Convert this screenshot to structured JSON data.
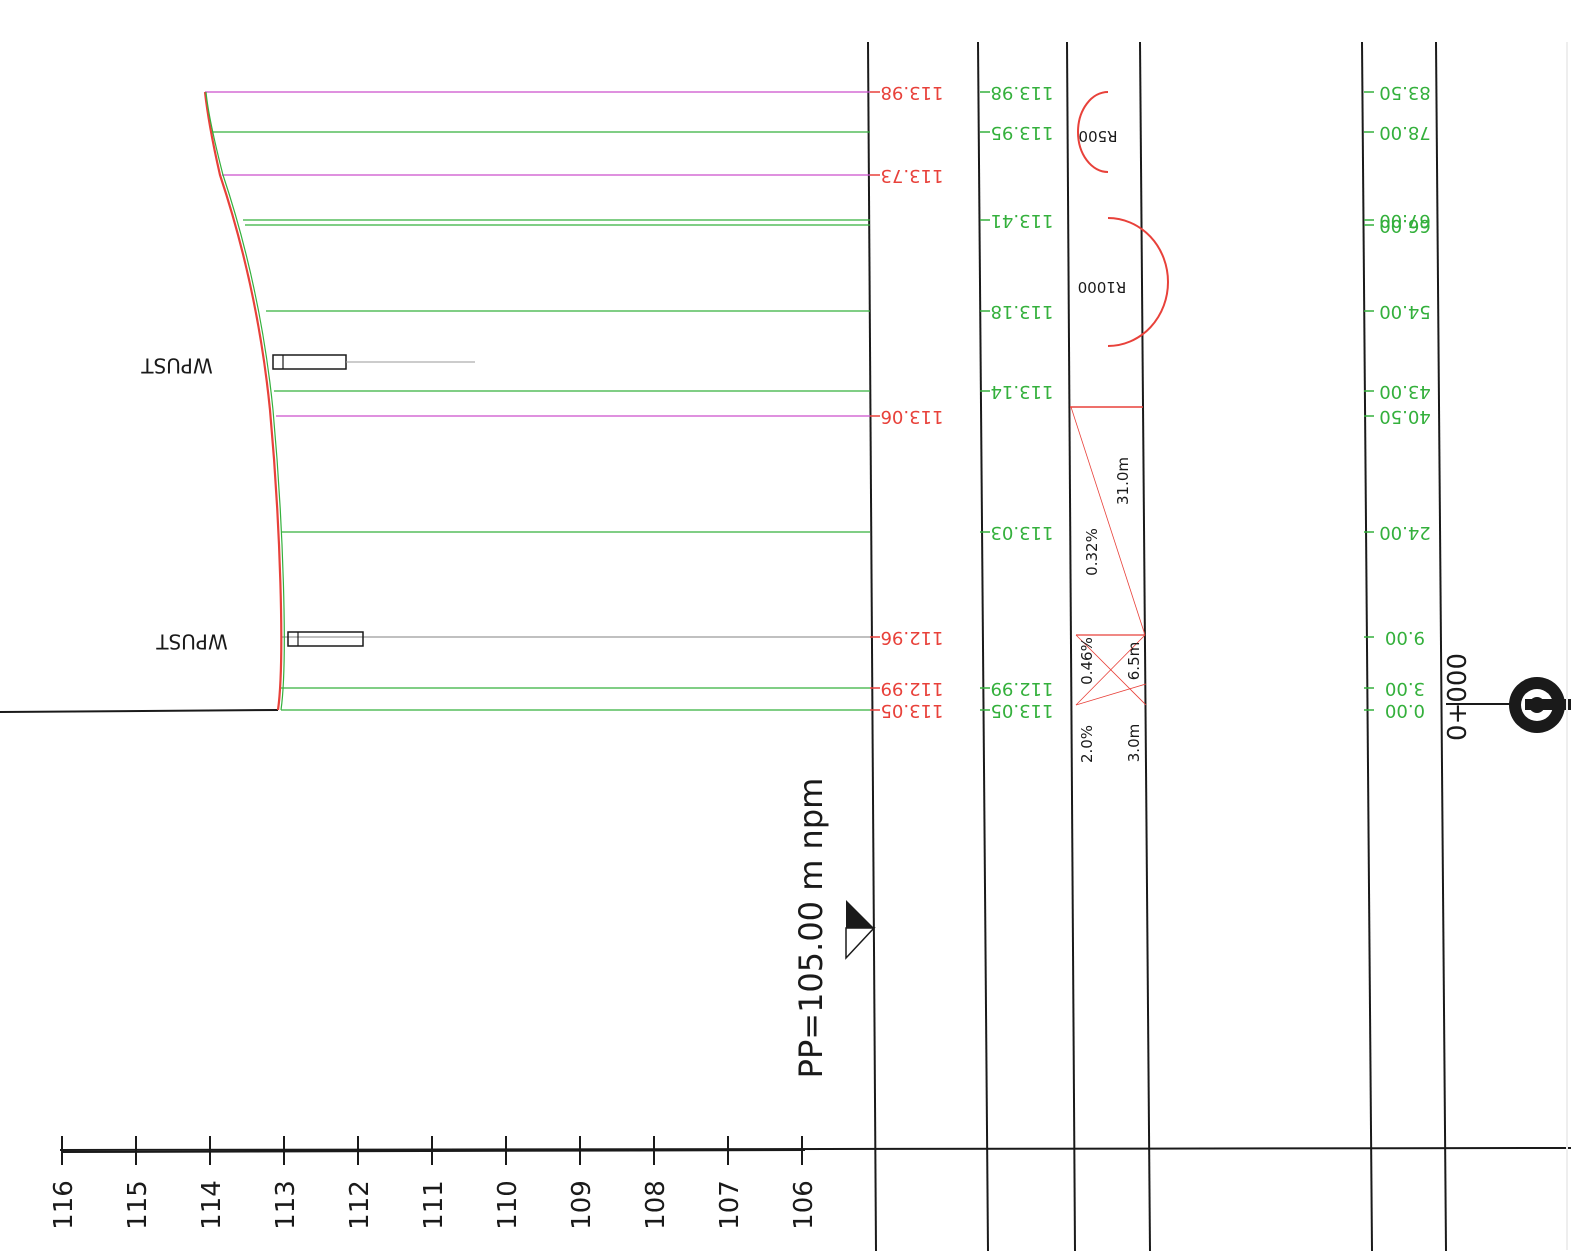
{
  "colors": {
    "ink": "#1a1a1a",
    "design": "#e8413a",
    "green": "#34b03c",
    "magenta": "#cc4fcc",
    "grey": "#9a9a9a"
  },
  "scale": {
    "ticks": [
      "116",
      "115",
      "114",
      "113",
      "112",
      "111",
      "110",
      "109",
      "108",
      "107",
      "106"
    ]
  },
  "datum": {
    "label": "PP=105.00 m npm"
  },
  "profile_rows": [
    {
      "station": "83.50",
      "design": "113.98",
      "terrain": "113.98",
      "line_color": "magenta"
    },
    {
      "station": "78.00",
      "design": "",
      "terrain": "113.95",
      "line_color": "green"
    },
    {
      "station": "",
      "design": "113.73",
      "terrain": "",
      "line_color": "magenta"
    },
    {
      "station": "67.00",
      "design": "",
      "terrain": "113.41",
      "line_color": "green"
    },
    {
      "station": "66.00",
      "design": "",
      "terrain": "",
      "line_color": "green"
    },
    {
      "station": "54.00",
      "design": "",
      "terrain": "113.18",
      "line_color": "green"
    },
    {
      "station": "43.00",
      "design": "",
      "terrain": "113.14",
      "line_color": "green"
    },
    {
      "station": "40.50",
      "design": "113.06",
      "terrain": "",
      "line_color": "magenta"
    },
    {
      "station": "24.00",
      "design": "",
      "terrain": "113.03",
      "line_color": "green"
    },
    {
      "station": "9.00",
      "design": "112.96",
      "terrain": "",
      "line_color": "grey"
    },
    {
      "station": "3.00",
      "design": "112.99",
      "terrain": "112.99",
      "line_color": "green"
    },
    {
      "station": "0.00",
      "design": "113.05",
      "terrain": "113.05",
      "line_color": "green"
    }
  ],
  "geometry_band": {
    "curves": [
      "R500",
      "R1000"
    ],
    "grades": [
      {
        "grade": "0.32%",
        "length": "31.0m"
      },
      {
        "grade": "0.46%",
        "length": "6.5m"
      },
      {
        "grade": "2.0%",
        "length": "3.0m"
      }
    ]
  },
  "chainage": {
    "label": "0+000"
  },
  "structures": [
    {
      "label": "WPUST"
    },
    {
      "label": "WPUST"
    }
  ]
}
